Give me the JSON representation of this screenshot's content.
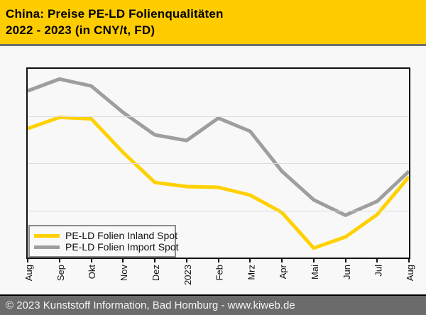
{
  "header": {
    "title_line1": "China: Preise PE-LD Folienqualitäten",
    "title_line2": "2022 - 2023 (in CNY/t, FD)"
  },
  "footer": {
    "copyright": "© 2023 Kunststoff Information, Bad Homburg - www.kiweb.de"
  },
  "colors": {
    "page_bg": "#F8F8F8",
    "header_bg": "#FFCC00",
    "divider": "#6E6E6E",
    "plot_border": "#111111",
    "gridline": "#DCDCDC",
    "legend_border": "#8A8A8A",
    "footer_bg": "#6B6B6B",
    "footer_text": "#F5F5F5",
    "inland_line": "#FFD100",
    "import_line": "#9E9E9E"
  },
  "chart_data": {
    "type": "line",
    "title": "China: Preise PE-LD Folienqualitäten 2022 - 2023 (in CNY/t, FD)",
    "xlabel": "",
    "ylabel": "CNY/t",
    "categories": [
      "Aug",
      "Sep",
      "Okt",
      "Nov",
      "Dez",
      "2023",
      "Feb",
      "Mrz",
      "Apr",
      "Mai",
      "Jun",
      "Jul",
      "Aug"
    ],
    "series": [
      {
        "name": "PE-LD Folien Inland Spot",
        "color_key": "inland_line",
        "values": [
          68.3,
          74.3,
          73.5,
          55.7,
          39.8,
          37.6,
          37.2,
          33.1,
          23.9,
          5.0,
          10.9,
          22.8,
          42.8
        ]
      },
      {
        "name": "PE-LD Folien Import Spot",
        "color_key": "import_line",
        "values": [
          88.3,
          94.6,
          90.9,
          76.9,
          65.0,
          62.0,
          73.9,
          66.9,
          45.7,
          30.6,
          22.4,
          29.8,
          45.7
        ]
      }
    ],
    "ylim": [
      0,
      100
    ],
    "y_axis_tick_labels_visible": false,
    "value_scale_note": "y-axis has no printed tick values; series values are percent of plot height above the baseline",
    "gridlines_pct_from_top": [
      25,
      50,
      75
    ],
    "grid": "horizontal-only",
    "legend_position": "bottom-left"
  }
}
